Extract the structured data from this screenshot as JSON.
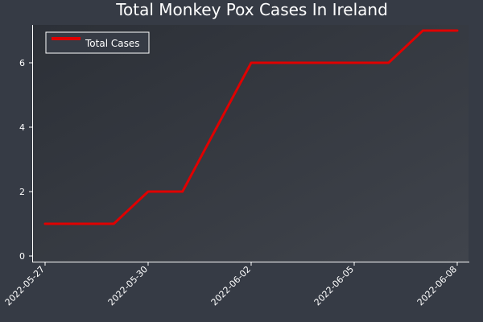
{
  "chart_data": {
    "type": "line",
    "title": "Total Monkey Pox Cases In Ireland",
    "xlabel": "",
    "ylabel": "",
    "x": [
      "2022-05-27",
      "2022-05-28",
      "2022-05-29",
      "2022-05-30",
      "2022-05-31",
      "2022-06-01",
      "2022-06-02",
      "2022-06-03",
      "2022-06-04",
      "2022-06-05",
      "2022-06-06",
      "2022-06-07",
      "2022-06-08"
    ],
    "x_ticks": [
      "2022-05-27",
      "2022-05-30",
      "2022-06-02",
      "2022-06-05",
      "2022-06-08"
    ],
    "y_ticks": [
      0,
      2,
      4,
      6
    ],
    "ylim": [
      -0.2,
      7.2
    ],
    "series": [
      {
        "name": "Total Cases",
        "color": "#e00000",
        "values": [
          1,
          1,
          1,
          2,
          2,
          4,
          6,
          6,
          6,
          6,
          6,
          7,
          7
        ]
      }
    ],
    "legend_position": "top-left",
    "grid": false,
    "colors": {
      "background": "#363b45",
      "plot_top": "#2c3037",
      "plot_bottom": "#3e424a",
      "axis": "#ffffff"
    }
  }
}
